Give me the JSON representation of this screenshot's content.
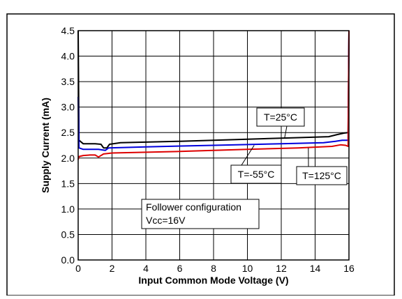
{
  "chart_data": {
    "type": "line",
    "title": "",
    "xlabel": "Input Common Mode Voltage (V)",
    "ylabel": "Supply Current (mA)",
    "xlim": [
      0,
      16
    ],
    "ylim": [
      0,
      4.5
    ],
    "xticks": [
      0,
      2,
      4,
      6,
      8,
      10,
      12,
      14,
      16
    ],
    "xtick_labels": [
      "0",
      "2",
      "4",
      "6",
      "8",
      "10",
      "12",
      "14",
      "16"
    ],
    "yticks": [
      0,
      0.5,
      1.0,
      1.5,
      2.0,
      2.5,
      3.0,
      3.5,
      4.0,
      4.5
    ],
    "ytick_labels": [
      "0.0",
      "0.5",
      "1.0",
      "1.5",
      "2.0",
      "2.5",
      "3.0",
      "3.5",
      "4.0",
      "4.5"
    ],
    "grid": true,
    "series": [
      {
        "name": "T=25°C",
        "color": "#000000",
        "points": [
          [
            0,
            4.5
          ],
          [
            0.05,
            2.35
          ],
          [
            0.3,
            2.28
          ],
          [
            1.0,
            2.28
          ],
          [
            1.35,
            2.27
          ],
          [
            1.5,
            2.2
          ],
          [
            1.7,
            2.2
          ],
          [
            1.85,
            2.27
          ],
          [
            2.5,
            2.3
          ],
          [
            6,
            2.33
          ],
          [
            10,
            2.37
          ],
          [
            13,
            2.4
          ],
          [
            14.8,
            2.42
          ],
          [
            15.3,
            2.46
          ],
          [
            15.7,
            2.49
          ],
          [
            15.95,
            2.5
          ],
          [
            16,
            4.5
          ]
        ]
      },
      {
        "name": "T=-55°C",
        "color": "#0000dd",
        "points": [
          [
            0,
            3.2
          ],
          [
            0.05,
            2.2
          ],
          [
            0.3,
            2.17
          ],
          [
            1.2,
            2.17
          ],
          [
            1.6,
            2.15
          ],
          [
            1.8,
            2.2
          ],
          [
            4,
            2.22
          ],
          [
            8,
            2.25
          ],
          [
            12,
            2.28
          ],
          [
            14.5,
            2.3
          ],
          [
            15.2,
            2.33
          ],
          [
            15.6,
            2.35
          ],
          [
            15.95,
            2.35
          ],
          [
            16,
            4.5
          ]
        ]
      },
      {
        "name": "T=125°C",
        "color": "#dd0000",
        "points": [
          [
            0,
            1.97
          ],
          [
            0.05,
            2.03
          ],
          [
            0.3,
            2.05
          ],
          [
            0.7,
            2.06
          ],
          [
            1.0,
            2.06
          ],
          [
            1.2,
            2.02
          ],
          [
            1.5,
            2.08
          ],
          [
            2,
            2.1
          ],
          [
            6,
            2.13
          ],
          [
            10,
            2.17
          ],
          [
            13,
            2.2
          ],
          [
            15,
            2.23
          ],
          [
            15.5,
            2.26
          ],
          [
            15.8,
            2.25
          ],
          [
            15.95,
            2.23
          ],
          [
            16,
            4.5
          ]
        ]
      }
    ],
    "annotations": [
      {
        "text": "T=25°C",
        "target": "T=25°C"
      },
      {
        "text": "T=-55°C",
        "target": "T=-55°C"
      },
      {
        "text": "T=125°C",
        "target": "T=125°C"
      },
      {
        "text": "Follower configuration",
        "line2": "Vcc=16V"
      }
    ]
  }
}
